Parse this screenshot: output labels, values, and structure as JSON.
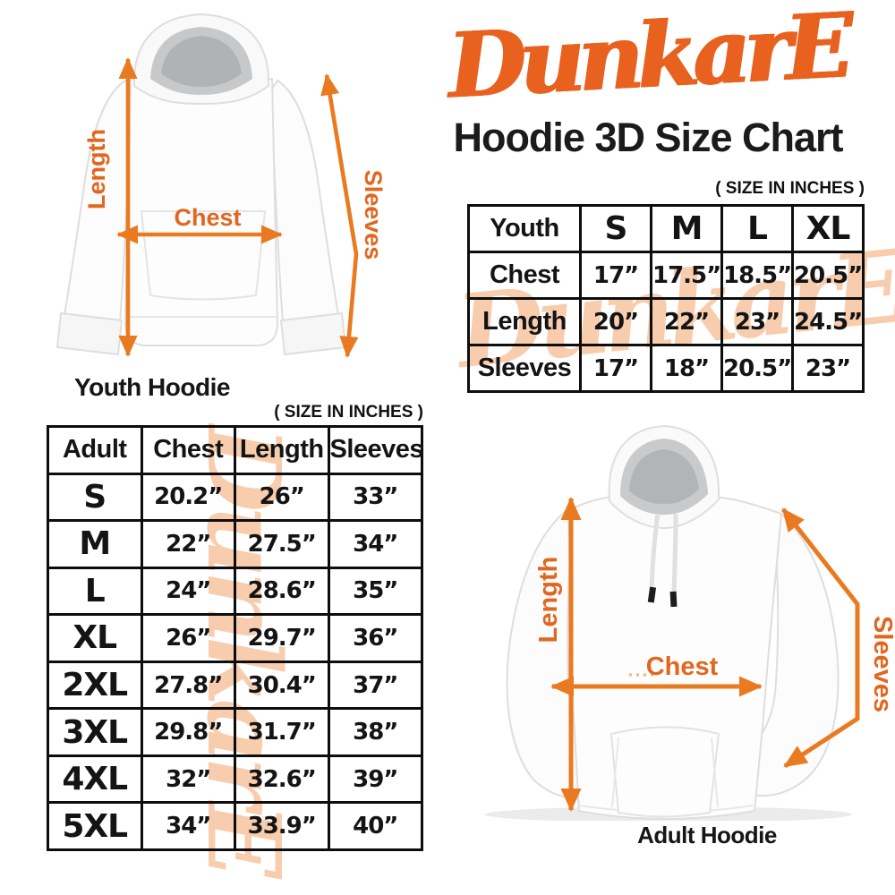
{
  "colors": {
    "logo_orange": "#E8611F",
    "arrow_orange": "#EA7A1F",
    "watermark_peach": "#F8CDAE",
    "text_black": "#141414"
  },
  "brand": {
    "logo_text": "DunkarE"
  },
  "header": {
    "title": "Hoodie 3D Size Chart"
  },
  "youth_section": {
    "size_note": "( SIZE IN INCHES )",
    "diagram": {
      "caption": "Youth Hoodie",
      "length_label": "Length",
      "chest_label": "Chest",
      "sleeves_label": "Sleeves"
    },
    "table": {
      "header": [
        "Youth",
        "S",
        "M",
        "L",
        "XL"
      ],
      "rows": [
        [
          "Chest",
          "17”",
          "17.5”",
          "18.5”",
          "20.5”"
        ],
        [
          "Length",
          "20”",
          "22”",
          "23”",
          "24.5”"
        ],
        [
          "Sleeves",
          "17”",
          "18”",
          "20.5”",
          "23”"
        ]
      ]
    }
  },
  "adult_section": {
    "size_note": "( SIZE IN INCHES )",
    "diagram": {
      "caption": "Adult Hoodie",
      "length_label": "Length",
      "chest_label": "Chest",
      "sleeves_label": "Sleeves"
    },
    "table": {
      "header": [
        "Adult",
        "Chest",
        "Length",
        "Sleeves"
      ],
      "rows": [
        [
          "S",
          "20.2”",
          "26”",
          "33”"
        ],
        [
          "M",
          "22”",
          "27.5”",
          "34”"
        ],
        [
          "L",
          "24”",
          "28.6”",
          "35”"
        ],
        [
          "XL",
          "26”",
          "29.7”",
          "36”"
        ],
        [
          "2XL",
          "27.8”",
          "30.4”",
          "37”"
        ],
        [
          "3XL",
          "29.8”",
          "31.7”",
          "38”"
        ],
        [
          "4XL",
          "32”",
          "32.6”",
          "39”"
        ],
        [
          "5XL",
          "34”",
          "33.9”",
          "40”"
        ]
      ]
    }
  }
}
